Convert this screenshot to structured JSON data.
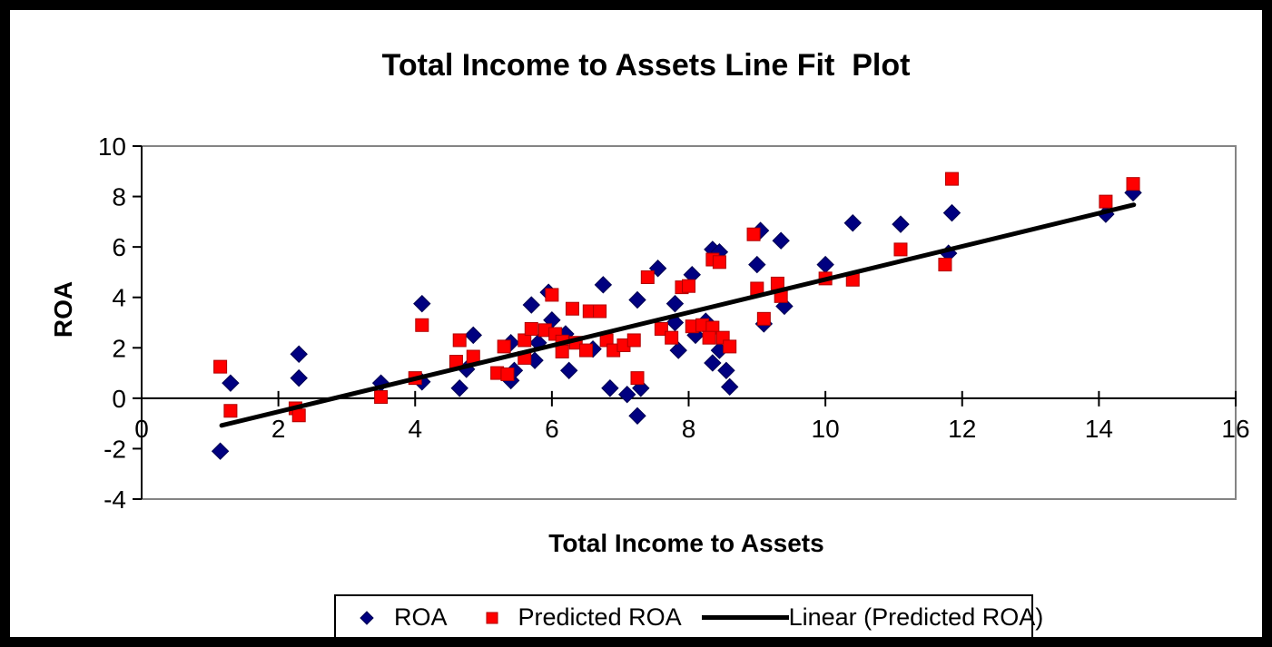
{
  "chart_data": {
    "type": "scatter",
    "title": "Total Income to Assets Line Fit  Plot",
    "xlabel": "Total Income to Assets",
    "ylabel": "ROA",
    "xlim": [
      0,
      16
    ],
    "ylim": [
      -4,
      10
    ],
    "xticks": [
      0,
      2,
      4,
      6,
      8,
      10,
      12,
      14,
      16
    ],
    "yticks": [
      -4,
      -2,
      0,
      2,
      4,
      6,
      8,
      10
    ],
    "grid": false,
    "legend_position": "bottom",
    "series": [
      {
        "name": "ROA",
        "marker": "diamond",
        "color": "#000080",
        "points": [
          [
            1.15,
            -2.1
          ],
          [
            1.3,
            0.6
          ],
          [
            2.3,
            1.75
          ],
          [
            2.3,
            0.8
          ],
          [
            3.5,
            0.6
          ],
          [
            4.1,
            3.75
          ],
          [
            4.1,
            0.65
          ],
          [
            4.65,
            0.4
          ],
          [
            4.75,
            1.15
          ],
          [
            4.85,
            2.5
          ],
          [
            5.4,
            2.2
          ],
          [
            5.4,
            0.7
          ],
          [
            5.45,
            1.1
          ],
          [
            5.7,
            3.7
          ],
          [
            5.75,
            1.5
          ],
          [
            5.8,
            2.2
          ],
          [
            5.95,
            4.2
          ],
          [
            6.0,
            3.1
          ],
          [
            6.2,
            2.55
          ],
          [
            6.25,
            1.1
          ],
          [
            6.6,
            1.95
          ],
          [
            6.75,
            4.5
          ],
          [
            6.85,
            0.4
          ],
          [
            7.1,
            0.15
          ],
          [
            7.25,
            3.9
          ],
          [
            7.3,
            0.4
          ],
          [
            7.25,
            -0.7
          ],
          [
            7.55,
            5.15
          ],
          [
            7.8,
            3.75
          ],
          [
            7.8,
            3.0
          ],
          [
            7.85,
            1.9
          ],
          [
            8.05,
            4.9
          ],
          [
            8.1,
            2.5
          ],
          [
            8.25,
            3.05
          ],
          [
            8.35,
            5.9
          ],
          [
            8.45,
            5.8
          ],
          [
            8.35,
            1.4
          ],
          [
            8.45,
            1.9
          ],
          [
            8.55,
            1.1
          ],
          [
            8.6,
            0.45
          ],
          [
            9.05,
            6.65
          ],
          [
            9.0,
            5.3
          ],
          [
            9.1,
            2.95
          ],
          [
            9.35,
            6.25
          ],
          [
            9.4,
            3.65
          ],
          [
            10.0,
            5.3
          ],
          [
            10.4,
            6.95
          ],
          [
            11.1,
            6.9
          ],
          [
            11.8,
            5.75
          ],
          [
            11.85,
            7.35
          ],
          [
            14.1,
            7.3
          ],
          [
            14.5,
            8.15
          ]
        ]
      },
      {
        "name": "Predicted ROA",
        "marker": "square",
        "color": "#FF0000",
        "points": [
          [
            1.15,
            1.25
          ],
          [
            1.3,
            -0.5
          ],
          [
            2.25,
            -0.4
          ],
          [
            2.3,
            -0.68
          ],
          [
            3.5,
            0.05
          ],
          [
            4.0,
            0.8
          ],
          [
            4.1,
            2.9
          ],
          [
            4.6,
            1.45
          ],
          [
            4.65,
            2.3
          ],
          [
            4.85,
            1.65
          ],
          [
            5.2,
            1.0
          ],
          [
            5.35,
            0.95
          ],
          [
            5.3,
            2.05
          ],
          [
            5.6,
            2.3
          ],
          [
            5.6,
            1.6
          ],
          [
            5.7,
            2.75
          ],
          [
            5.9,
            2.7
          ],
          [
            6.05,
            2.55
          ],
          [
            6.0,
            4.1
          ],
          [
            6.15,
            2.25
          ],
          [
            6.15,
            1.85
          ],
          [
            6.3,
            3.55
          ],
          [
            6.35,
            2.2
          ],
          [
            6.5,
            1.9
          ],
          [
            6.55,
            3.45
          ],
          [
            6.7,
            3.45
          ],
          [
            6.8,
            2.3
          ],
          [
            6.9,
            1.9
          ],
          [
            7.05,
            2.1
          ],
          [
            7.2,
            2.3
          ],
          [
            7.25,
            0.8
          ],
          [
            7.4,
            4.8
          ],
          [
            7.6,
            2.75
          ],
          [
            7.75,
            2.4
          ],
          [
            7.9,
            4.4
          ],
          [
            8.0,
            4.45
          ],
          [
            8.05,
            2.85
          ],
          [
            8.2,
            2.9
          ],
          [
            8.35,
            2.8
          ],
          [
            8.3,
            2.4
          ],
          [
            8.5,
            2.4
          ],
          [
            8.6,
            2.05
          ],
          [
            8.35,
            5.5
          ],
          [
            8.45,
            5.4
          ],
          [
            8.95,
            6.5
          ],
          [
            9.0,
            4.35
          ],
          [
            9.1,
            3.15
          ],
          [
            9.3,
            4.55
          ],
          [
            9.35,
            4.05
          ],
          [
            10.0,
            4.75
          ],
          [
            10.4,
            4.7
          ],
          [
            11.1,
            5.9
          ],
          [
            11.75,
            5.3
          ],
          [
            11.85,
            8.7
          ],
          [
            14.1,
            7.8
          ],
          [
            14.5,
            8.5
          ]
        ]
      },
      {
        "name": "Linear (Predicted ROA)",
        "marker": "line",
        "color": "#000000",
        "points": [
          [
            1.17,
            -1.08
          ],
          [
            14.51,
            7.67
          ]
        ]
      }
    ]
  }
}
